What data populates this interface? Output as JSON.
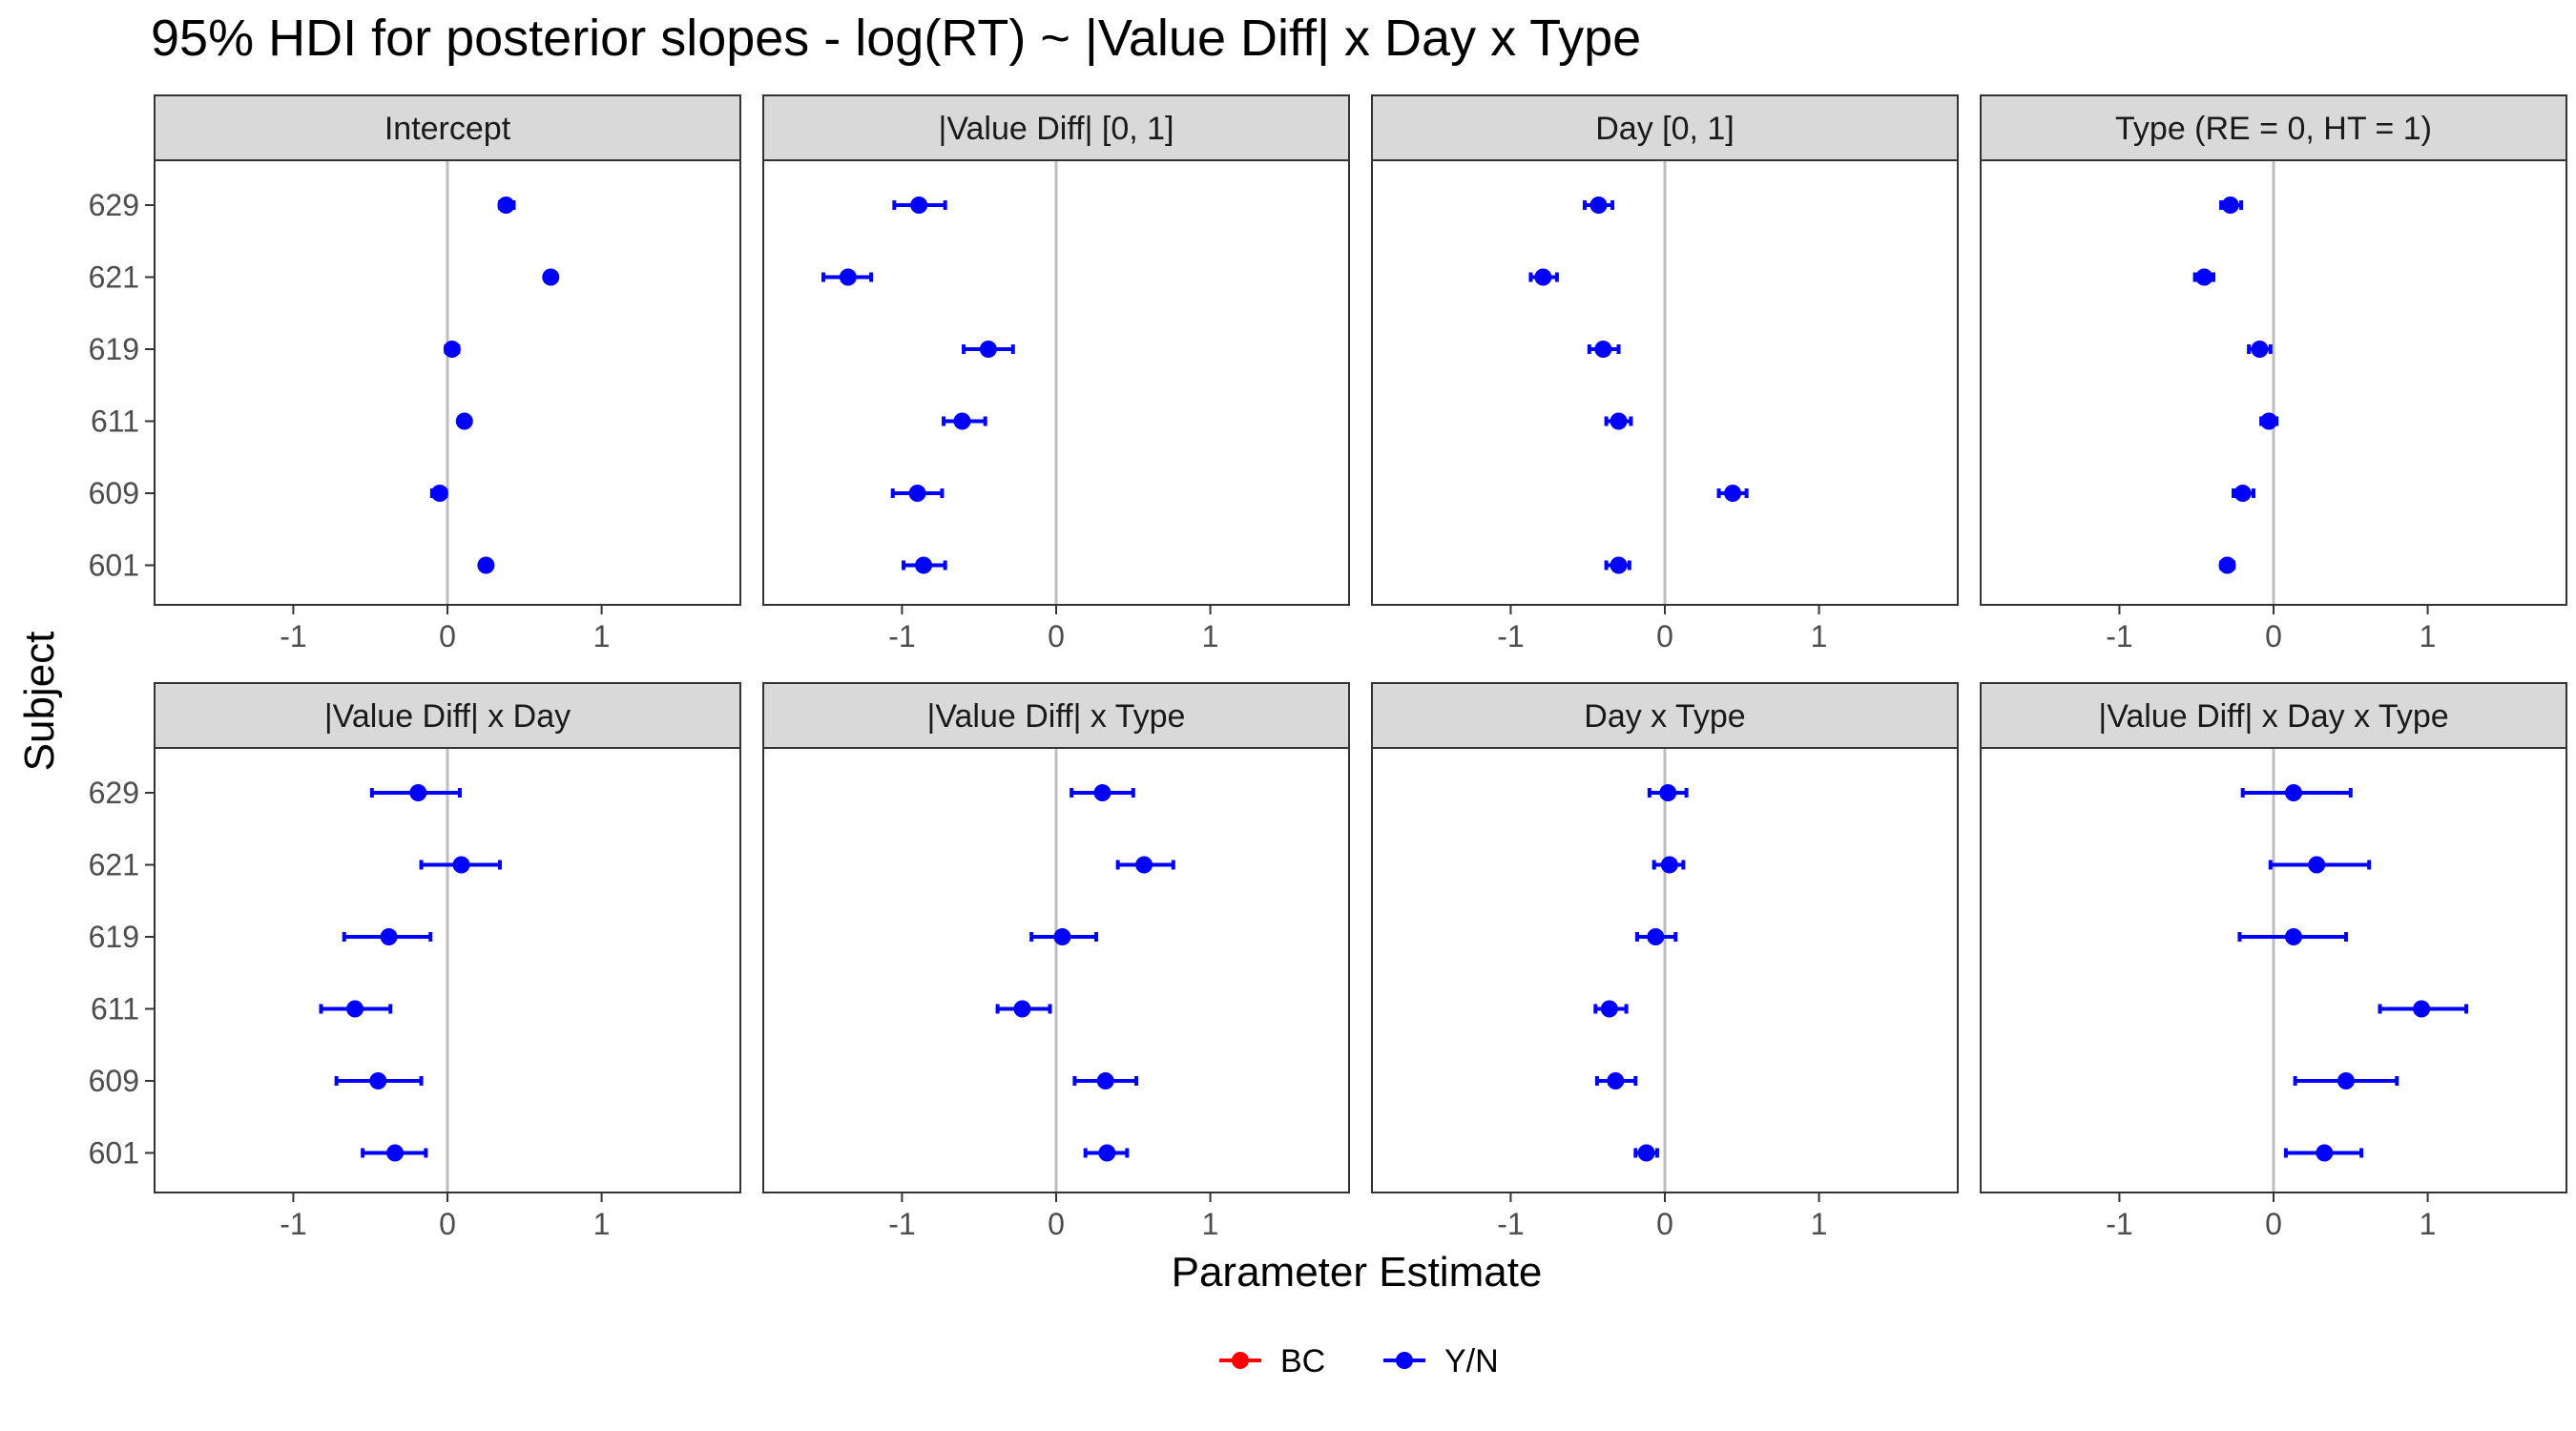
{
  "chart_data": {
    "type": "scatter",
    "title": "95% HDI for posterior slopes - log(RT) ~ |Value Diff| x Day x Type",
    "xlabel": "Parameter Estimate",
    "ylabel": "Subject",
    "xlim": [
      -1.9,
      1.9
    ],
    "xticks": [
      -1,
      0,
      1
    ],
    "xtick_labels": [
      "-1",
      "0",
      "1"
    ],
    "subjects": [
      "629",
      "621",
      "619",
      "611",
      "609",
      "601"
    ],
    "reference_line": 0,
    "legend": {
      "position": "bottom",
      "entries": [
        {
          "label": "BC",
          "color": "#ff0000"
        },
        {
          "label": "Y/N",
          "color": "#0000ff"
        }
      ]
    },
    "grid": false,
    "panels": [
      {
        "label": "Intercept",
        "series": "Y/N",
        "points": [
          {
            "subject": "629",
            "estimate": 0.38,
            "lower": 0.34,
            "upper": 0.43
          },
          {
            "subject": "621",
            "estimate": 0.67,
            "lower": 0.64,
            "upper": 0.7
          },
          {
            "subject": "619",
            "estimate": 0.03,
            "lower": -0.01,
            "upper": 0.07
          },
          {
            "subject": "611",
            "estimate": 0.11,
            "lower": 0.08,
            "upper": 0.14
          },
          {
            "subject": "609",
            "estimate": -0.05,
            "lower": -0.1,
            "upper": -0.01
          },
          {
            "subject": "601",
            "estimate": 0.25,
            "lower": 0.22,
            "upper": 0.28
          }
        ]
      },
      {
        "label": "|Value Diff| [0, 1]",
        "series": "Y/N",
        "points": [
          {
            "subject": "629",
            "estimate": -0.89,
            "lower": -1.05,
            "upper": -0.72
          },
          {
            "subject": "621",
            "estimate": -1.35,
            "lower": -1.51,
            "upper": -1.2
          },
          {
            "subject": "619",
            "estimate": -0.44,
            "lower": -0.6,
            "upper": -0.28
          },
          {
            "subject": "611",
            "estimate": -0.61,
            "lower": -0.73,
            "upper": -0.46
          },
          {
            "subject": "609",
            "estimate": -0.9,
            "lower": -1.06,
            "upper": -0.74
          },
          {
            "subject": "601",
            "estimate": -0.86,
            "lower": -0.99,
            "upper": -0.72
          }
        ]
      },
      {
        "label": "Day [0, 1]",
        "series": "Y/N",
        "points": [
          {
            "subject": "629",
            "estimate": -0.43,
            "lower": -0.52,
            "upper": -0.34
          },
          {
            "subject": "621",
            "estimate": -0.79,
            "lower": -0.87,
            "upper": -0.7
          },
          {
            "subject": "619",
            "estimate": -0.4,
            "lower": -0.49,
            "upper": -0.3
          },
          {
            "subject": "611",
            "estimate": -0.3,
            "lower": -0.38,
            "upper": -0.22
          },
          {
            "subject": "609",
            "estimate": 0.44,
            "lower": 0.35,
            "upper": 0.53
          },
          {
            "subject": "601",
            "estimate": -0.3,
            "lower": -0.38,
            "upper": -0.23
          }
        ]
      },
      {
        "label": "Type (RE = 0, HT = 1)",
        "series": "Y/N",
        "points": [
          {
            "subject": "629",
            "estimate": -0.28,
            "lower": -0.34,
            "upper": -0.21
          },
          {
            "subject": "621",
            "estimate": -0.45,
            "lower": -0.51,
            "upper": -0.39
          },
          {
            "subject": "619",
            "estimate": -0.09,
            "lower": -0.16,
            "upper": -0.02
          },
          {
            "subject": "611",
            "estimate": -0.03,
            "lower": -0.08,
            "upper": 0.02
          },
          {
            "subject": "609",
            "estimate": -0.2,
            "lower": -0.26,
            "upper": -0.13
          },
          {
            "subject": "601",
            "estimate": -0.3,
            "lower": -0.34,
            "upper": -0.26
          }
        ]
      },
      {
        "label": "|Value Diff| x Day",
        "series": "Y/N",
        "points": [
          {
            "subject": "629",
            "estimate": -0.19,
            "lower": -0.49,
            "upper": 0.08
          },
          {
            "subject": "621",
            "estimate": 0.09,
            "lower": -0.17,
            "upper": 0.34
          },
          {
            "subject": "619",
            "estimate": -0.38,
            "lower": -0.67,
            "upper": -0.11
          },
          {
            "subject": "611",
            "estimate": -0.6,
            "lower": -0.82,
            "upper": -0.37
          },
          {
            "subject": "609",
            "estimate": -0.45,
            "lower": -0.72,
            "upper": -0.17
          },
          {
            "subject": "601",
            "estimate": -0.34,
            "lower": -0.55,
            "upper": -0.14
          }
        ]
      },
      {
        "label": "|Value Diff| x Type",
        "series": "Y/N",
        "points": [
          {
            "subject": "629",
            "estimate": 0.3,
            "lower": 0.1,
            "upper": 0.5
          },
          {
            "subject": "621",
            "estimate": 0.57,
            "lower": 0.4,
            "upper": 0.76
          },
          {
            "subject": "619",
            "estimate": 0.04,
            "lower": -0.16,
            "upper": 0.26
          },
          {
            "subject": "611",
            "estimate": -0.22,
            "lower": -0.38,
            "upper": -0.04
          },
          {
            "subject": "609",
            "estimate": 0.32,
            "lower": 0.12,
            "upper": 0.52
          },
          {
            "subject": "601",
            "estimate": 0.33,
            "lower": 0.19,
            "upper": 0.46
          }
        ]
      },
      {
        "label": "Day x Type",
        "series": "Y/N",
        "points": [
          {
            "subject": "629",
            "estimate": 0.02,
            "lower": -0.1,
            "upper": 0.14
          },
          {
            "subject": "621",
            "estimate": 0.03,
            "lower": -0.07,
            "upper": 0.12
          },
          {
            "subject": "619",
            "estimate": -0.06,
            "lower": -0.18,
            "upper": 0.07
          },
          {
            "subject": "611",
            "estimate": -0.36,
            "lower": -0.45,
            "upper": -0.25
          },
          {
            "subject": "609",
            "estimate": -0.32,
            "lower": -0.44,
            "upper": -0.19
          },
          {
            "subject": "601",
            "estimate": -0.12,
            "lower": -0.19,
            "upper": -0.05
          }
        ]
      },
      {
        "label": "|Value Diff| x Day x Type",
        "series": "Y/N",
        "points": [
          {
            "subject": "629",
            "estimate": 0.13,
            "lower": -0.2,
            "upper": 0.5
          },
          {
            "subject": "621",
            "estimate": 0.28,
            "lower": -0.02,
            "upper": 0.62
          },
          {
            "subject": "619",
            "estimate": 0.13,
            "lower": -0.22,
            "upper": 0.47
          },
          {
            "subject": "611",
            "estimate": 0.96,
            "lower": 0.69,
            "upper": 1.25
          },
          {
            "subject": "609",
            "estimate": 0.47,
            "lower": 0.14,
            "upper": 0.8
          },
          {
            "subject": "601",
            "estimate": 0.33,
            "lower": 0.08,
            "upper": 0.57
          }
        ]
      }
    ]
  }
}
